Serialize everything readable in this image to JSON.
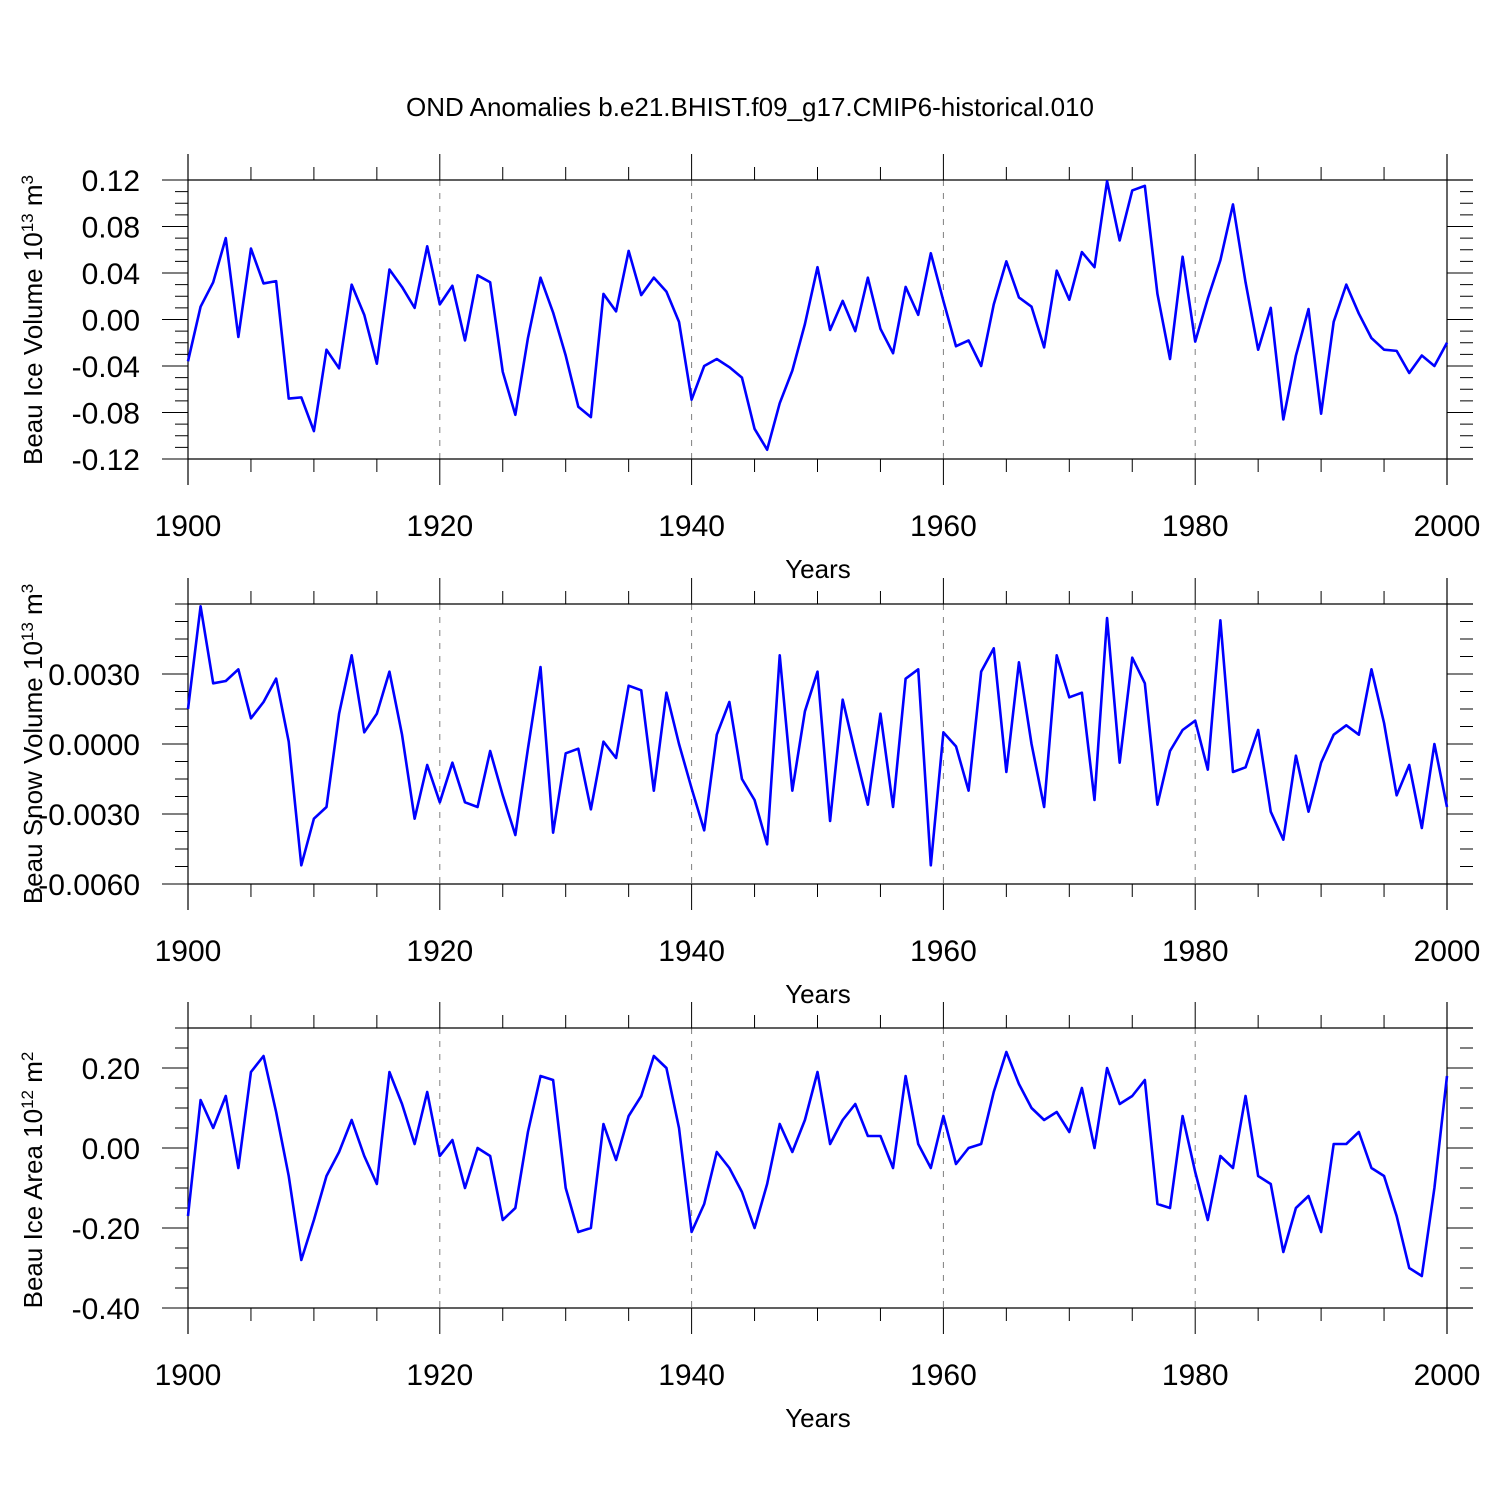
{
  "title": "OND Anomalies b.e21.BHIST.f09_g17.CMIP6-historical.010",
  "colors": {
    "line": "#0000ff",
    "axis": "#000000",
    "grid": "#808080"
  },
  "chart_data": [
    {
      "type": "line",
      "ylabel": "Beau Ice Volume 10",
      "ylabel_sup": "13",
      "ylabel_unit": " m",
      "ylabel_unit_sup": "3",
      "xlabel": "Years",
      "xlim": [
        1900,
        2000
      ],
      "ylim": [
        -0.12,
        0.12
      ],
      "yticks": [
        -0.12,
        -0.08,
        -0.04,
        0.0,
        0.04,
        0.08,
        0.12
      ],
      "ytick_labels": [
        "-0.12",
        "-0.08",
        "-0.04",
        "0.00",
        "0.04",
        "0.08",
        "0.12"
      ],
      "xticks": [
        1900,
        1920,
        1940,
        1960,
        1980,
        2000
      ],
      "xtick_labels": [
        "1900",
        "1920",
        "1940",
        "1960",
        "1980",
        "2000"
      ],
      "x_start": 1900,
      "values": [
        -0.036,
        0.011,
        0.032,
        0.07,
        -0.015,
        0.061,
        0.031,
        0.033,
        -0.068,
        -0.067,
        -0.096,
        -0.026,
        -0.042,
        0.03,
        0.004,
        -0.038,
        0.043,
        0.028,
        0.01,
        0.063,
        0.013,
        0.029,
        -0.018,
        0.038,
        0.032,
        -0.045,
        -0.082,
        -0.016,
        0.036,
        0.006,
        -0.031,
        -0.075,
        -0.084,
        0.022,
        0.007,
        0.059,
        0.021,
        0.036,
        0.024,
        -0.002,
        -0.069,
        -0.04,
        -0.034,
        -0.041,
        -0.05,
        -0.094,
        -0.112,
        -0.072,
        -0.044,
        -0.004,
        0.045,
        -0.009,
        0.016,
        -0.01,
        0.036,
        -0.008,
        -0.029,
        0.028,
        0.004,
        0.057,
        0.016,
        -0.023,
        -0.018,
        -0.04,
        0.013,
        0.05,
        0.019,
        0.011,
        -0.024,
        0.042,
        0.017,
        0.058,
        0.045,
        0.119,
        0.068,
        0.111,
        0.115,
        0.022,
        -0.034,
        0.054,
        -0.019,
        0.018,
        0.051,
        0.099,
        0.032,
        -0.026,
        0.01,
        -0.086,
        -0.031,
        0.009,
        -0.081,
        -0.002,
        0.03,
        0.005,
        -0.016,
        -0.026,
        -0.027,
        -0.046,
        -0.031,
        -0.04,
        -0.02
      ]
    },
    {
      "type": "line",
      "ylabel": "Beau Snow Volume 10",
      "ylabel_sup": "13",
      "ylabel_unit": " m",
      "ylabel_unit_sup": "3",
      "xlabel": "Years",
      "xlim": [
        1900,
        2000
      ],
      "ylim": [
        -0.006,
        0.006
      ],
      "yticks": [
        -0.006,
        -0.003,
        0.0,
        0.003
      ],
      "ytick_labels": [
        "-0.0060",
        "-0.0030",
        "0.0000",
        "0.0030"
      ],
      "xticks": [
        1900,
        1920,
        1940,
        1960,
        1980,
        2000
      ],
      "xtick_labels": [
        "1900",
        "1920",
        "1940",
        "1960",
        "1980",
        "2000"
      ],
      "x_start": 1900,
      "values": [
        0.0015,
        0.0059,
        0.0026,
        0.0027,
        0.0032,
        0.0011,
        0.0018,
        0.0028,
        0.0001,
        -0.0052,
        -0.0032,
        -0.0027,
        0.0013,
        0.0038,
        0.0005,
        0.0013,
        0.0031,
        0.0004,
        -0.0032,
        -0.0009,
        -0.0025,
        -0.0008,
        -0.0025,
        -0.0027,
        -0.0003,
        -0.0022,
        -0.0039,
        -0.0002,
        0.0033,
        -0.0038,
        -0.0004,
        -0.0002,
        -0.0028,
        0.0001,
        -0.0006,
        0.0025,
        0.0023,
        -0.002,
        0.0022,
        0.0,
        -0.0019,
        -0.0037,
        0.0004,
        0.0018,
        -0.0015,
        -0.0024,
        -0.0043,
        0.0038,
        -0.002,
        0.0014,
        0.0031,
        -0.0033,
        0.0019,
        -0.0004,
        -0.0026,
        0.0013,
        -0.0027,
        0.0028,
        0.0032,
        -0.0052,
        0.0005,
        -0.0001,
        -0.002,
        0.0031,
        0.0041,
        -0.0012,
        0.0035,
        0.0,
        -0.0027,
        0.0038,
        0.002,
        0.0022,
        -0.0024,
        0.0054,
        -0.0008,
        0.0037,
        0.0026,
        -0.0026,
        -0.0003,
        0.0006,
        0.001,
        -0.0011,
        0.0053,
        -0.0012,
        -0.001,
        0.0006,
        -0.0029,
        -0.0041,
        -0.0005,
        -0.0029,
        -0.0008,
        0.0004,
        0.0008,
        0.0004,
        0.0032,
        0.0009,
        -0.0022,
        -0.0009,
        -0.0036,
        0.0,
        -0.0027
      ]
    },
    {
      "type": "line",
      "ylabel": "Beau Ice Area 10",
      "ylabel_sup": "12",
      "ylabel_unit": " m",
      "ylabel_unit_sup": "2",
      "xlabel": "Years",
      "xlim": [
        1900,
        2000
      ],
      "ylim": [
        -0.4,
        0.3
      ],
      "yticks": [
        -0.4,
        -0.2,
        0.0,
        0.2
      ],
      "ytick_labels": [
        "-0.40",
        "-0.20",
        "0.00",
        "0.20"
      ],
      "xticks": [
        1900,
        1920,
        1940,
        1960,
        1980,
        2000
      ],
      "xtick_labels": [
        "1900",
        "1920",
        "1940",
        "1960",
        "1980",
        "2000"
      ],
      "x_start": 1900,
      "values": [
        -0.17,
        0.12,
        0.05,
        0.13,
        -0.05,
        0.19,
        0.23,
        0.09,
        -0.07,
        -0.28,
        -0.18,
        -0.07,
        -0.01,
        0.07,
        -0.02,
        -0.09,
        0.19,
        0.11,
        0.01,
        0.14,
        -0.02,
        0.02,
        -0.1,
        0.0,
        -0.02,
        -0.18,
        -0.15,
        0.04,
        0.18,
        0.17,
        -0.1,
        -0.21,
        -0.2,
        0.06,
        -0.03,
        0.08,
        0.13,
        0.23,
        0.2,
        0.05,
        -0.21,
        -0.14,
        -0.01,
        -0.05,
        -0.11,
        -0.2,
        -0.09,
        0.06,
        -0.01,
        0.07,
        0.19,
        0.01,
        0.07,
        0.11,
        0.03,
        0.03,
        -0.05,
        0.18,
        0.01,
        -0.05,
        0.08,
        -0.04,
        0.0,
        0.01,
        0.14,
        0.24,
        0.16,
        0.1,
        0.07,
        0.09,
        0.04,
        0.15,
        0.0,
        0.2,
        0.11,
        0.13,
        0.17,
        -0.14,
        -0.15,
        0.08,
        -0.06,
        -0.18,
        -0.02,
        -0.05,
        0.13,
        -0.07,
        -0.09,
        -0.26,
        -0.15,
        -0.12,
        -0.21,
        0.01,
        0.01,
        0.04,
        -0.05,
        -0.07,
        -0.17,
        -0.3,
        -0.32,
        -0.1,
        0.18
      ]
    }
  ]
}
